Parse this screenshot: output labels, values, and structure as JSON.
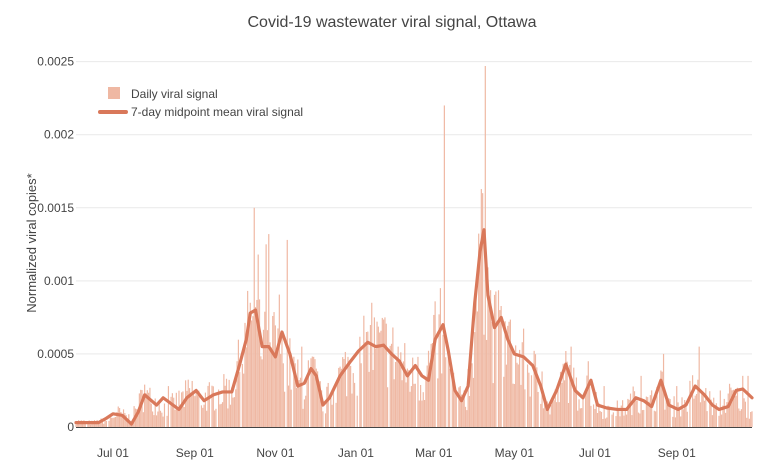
{
  "chart_data": {
    "type": "bar",
    "title": "Covid-19 wastewater viral signal, Ottawa",
    "xlabel": "",
    "ylabel": "Normalized viral copies*",
    "ylim": [
      0,
      0.0026
    ],
    "y_ticks": [
      {
        "value": 0,
        "label": "0"
      },
      {
        "value": 0.0005,
        "label": "0.0005"
      },
      {
        "value": 0.001,
        "label": "0.001"
      },
      {
        "value": 0.0015,
        "label": "0.0015"
      },
      {
        "value": 0.002,
        "label": "0.002"
      },
      {
        "value": 0.0025,
        "label": "0.0025"
      }
    ],
    "x_range": [
      "2020-06-03",
      "2021-10-28"
    ],
    "x_ticks": [
      {
        "date": "2020-07-01",
        "label": "Jul 01"
      },
      {
        "date": "2020-09-01",
        "label": "Sep 01"
      },
      {
        "date": "2020-11-01",
        "label": "Nov 01"
      },
      {
        "date": "2021-01-01",
        "label": "Jan 01"
      },
      {
        "date": "2021-03-01",
        "label": "Mar 01"
      },
      {
        "date": "2021-05-01",
        "label": "May 01"
      },
      {
        "date": "2021-07-01",
        "label": "Jul 01"
      },
      {
        "date": "2021-09-01",
        "label": "Sep 01"
      }
    ],
    "grid": true,
    "legend_position": "top-left",
    "colors": {
      "bar": "#efb8a3",
      "line": "#d9785a",
      "grid": "#e9e9e9",
      "text": "#444444"
    },
    "series": [
      {
        "name": "Daily viral signal",
        "type": "bar",
        "key_points": [
          [
            "2020-06-03",
            4e-05
          ],
          [
            "2020-06-15",
            3e-05
          ],
          [
            "2020-06-28",
            5e-05
          ],
          [
            "2020-07-05",
            0.0001
          ],
          [
            "2020-07-15",
            6e-05
          ],
          [
            "2020-07-24",
            0.00022
          ],
          [
            "2020-08-01",
            0.00018
          ],
          [
            "2020-08-10",
            0.00013
          ],
          [
            "2020-08-20",
            0.00018
          ],
          [
            "2020-08-30",
            0.00025
          ],
          [
            "2020-09-05",
            0.00019
          ],
          [
            "2020-09-15",
            0.00023
          ],
          [
            "2020-09-28",
            0.00025
          ],
          [
            "2020-10-06",
            0.00045
          ],
          [
            "2020-10-14",
            0.00075
          ],
          [
            "2020-10-20",
            0.0006
          ],
          [
            "2020-10-27",
            0.0005
          ],
          [
            "2020-11-04",
            0.00065
          ],
          [
            "2020-11-12",
            0.00042
          ],
          [
            "2020-11-22",
            0.00025
          ],
          [
            "2020-11-28",
            0.0004
          ],
          [
            "2020-12-08",
            0.00016
          ],
          [
            "2020-12-22",
            0.00038
          ],
          [
            "2021-01-05",
            0.0005
          ],
          [
            "2021-01-15",
            0.00055
          ],
          [
            "2021-01-25",
            0.00055
          ],
          [
            "2021-02-03",
            0.00044
          ],
          [
            "2021-02-12",
            0.00035
          ],
          [
            "2021-02-22",
            0.00032
          ],
          [
            "2021-03-03",
            0.00062
          ],
          [
            "2021-03-10",
            0.00045
          ],
          [
            "2021-03-18",
            0.00022
          ],
          [
            "2021-03-25",
            0.00015
          ],
          [
            "2021-04-02",
            0.0008
          ],
          [
            "2021-04-08",
            0.00125
          ],
          [
            "2021-04-14",
            0.00065
          ],
          [
            "2021-04-22",
            0.00062
          ],
          [
            "2021-04-30",
            0.00048
          ],
          [
            "2021-05-08",
            0.00045
          ],
          [
            "2021-05-18",
            0.00035
          ],
          [
            "2021-05-27",
            0.00012
          ],
          [
            "2021-06-03",
            0.00022
          ],
          [
            "2021-06-10",
            0.00038
          ],
          [
            "2021-06-18",
            0.00022
          ],
          [
            "2021-06-26",
            0.00028
          ],
          [
            "2021-07-05",
            0.00012
          ],
          [
            "2021-07-15",
            0.00012
          ],
          [
            "2021-07-24",
            0.00013
          ],
          [
            "2021-08-02",
            0.00022
          ],
          [
            "2021-08-11",
            0.00015
          ],
          [
            "2021-08-20",
            0.00028
          ],
          [
            "2021-08-28",
            0.00014
          ],
          [
            "2021-09-06",
            0.00015
          ],
          [
            "2021-09-14",
            0.00027
          ],
          [
            "2021-09-23",
            0.0002
          ],
          [
            "2021-10-02",
            0.00012
          ],
          [
            "2021-10-12",
            0.00022
          ],
          [
            "2021-10-20",
            0.00018
          ],
          [
            "2021-10-28",
            0.0001
          ]
        ],
        "spikes": [
          [
            "2020-07-25",
            0.00029
          ],
          [
            "2020-08-12",
            0.00028
          ],
          [
            "2020-09-25",
            0.00033
          ],
          [
            "2020-10-03",
            0.00045
          ],
          [
            "2020-10-13",
            0.00085
          ],
          [
            "2020-10-16",
            0.0015
          ],
          [
            "2020-10-19",
            0.00118
          ],
          [
            "2020-10-25",
            0.00125
          ],
          [
            "2020-10-27",
            0.00132
          ],
          [
            "2020-11-06",
            0.00065
          ],
          [
            "2020-11-10",
            0.00128
          ],
          [
            "2020-11-21",
            0.00055
          ],
          [
            "2020-11-30",
            0.00048
          ],
          [
            "2020-12-26",
            0.00048
          ],
          [
            "2021-01-09",
            0.00065
          ],
          [
            "2021-01-13",
            0.00085
          ],
          [
            "2021-01-23",
            0.00075
          ],
          [
            "2021-02-02",
            0.00055
          ],
          [
            "2021-02-17",
            0.00048
          ],
          [
            "2021-03-06",
            0.00095
          ],
          [
            "2021-03-09",
            0.0022
          ],
          [
            "2021-03-24",
            0.00025
          ],
          [
            "2021-04-02",
            0.0009
          ],
          [
            "2021-04-05",
            0.00125
          ],
          [
            "2021-04-07",
            0.0016
          ],
          [
            "2021-04-09",
            0.00247
          ],
          [
            "2021-04-12",
            0.0009
          ],
          [
            "2021-04-20",
            0.0008
          ],
          [
            "2021-04-27",
            0.00072
          ],
          [
            "2021-05-07",
            0.00058
          ],
          [
            "2021-05-22",
            0.00038
          ],
          [
            "2021-06-09",
            0.00052
          ],
          [
            "2021-06-13",
            0.00055
          ],
          [
            "2021-06-26",
            0.00045
          ],
          [
            "2021-07-08",
            0.00028
          ],
          [
            "2021-08-05",
            0.00035
          ],
          [
            "2021-08-22",
            0.0005
          ],
          [
            "2021-09-01",
            0.00028
          ],
          [
            "2021-09-18",
            0.00055
          ],
          [
            "2021-10-04",
            0.00025
          ],
          [
            "2021-10-21",
            0.00035
          ],
          [
            "2021-10-25",
            0.00035
          ]
        ]
      },
      {
        "name": "7-day midpoint mean viral signal",
        "type": "line",
        "points": [
          [
            "2020-06-03",
            3e-05
          ],
          [
            "2020-06-20",
            3e-05
          ],
          [
            "2020-06-26",
            6e-05
          ],
          [
            "2020-07-01",
            9e-05
          ],
          [
            "2020-07-08",
            8e-05
          ],
          [
            "2020-07-15",
            2e-05
          ],
          [
            "2020-07-20",
            0.0001
          ],
          [
            "2020-07-25",
            0.00022
          ],
          [
            "2020-08-03",
            0.00015
          ],
          [
            "2020-08-08",
            0.0002
          ],
          [
            "2020-08-14",
            0.00016
          ],
          [
            "2020-08-20",
            0.00012
          ],
          [
            "2020-08-26",
            0.0002
          ],
          [
            "2020-09-02",
            0.00025
          ],
          [
            "2020-09-08",
            0.00018
          ],
          [
            "2020-09-15",
            0.00022
          ],
          [
            "2020-09-22",
            0.00024
          ],
          [
            "2020-09-29",
            0.00024
          ],
          [
            "2020-10-05",
            0.00043
          ],
          [
            "2020-10-10",
            0.0006
          ],
          [
            "2020-10-13",
            0.00078
          ],
          [
            "2020-10-17",
            0.0008
          ],
          [
            "2020-10-22",
            0.00055
          ],
          [
            "2020-10-27",
            0.00055
          ],
          [
            "2020-11-01",
            0.00048
          ],
          [
            "2020-11-06",
            0.00065
          ],
          [
            "2020-11-12",
            0.0005
          ],
          [
            "2020-11-18",
            0.00028
          ],
          [
            "2020-11-23",
            0.0003
          ],
          [
            "2020-11-28",
            0.0004
          ],
          [
            "2020-12-02",
            0.00035
          ],
          [
            "2020-12-07",
            0.00015
          ],
          [
            "2020-12-12",
            0.0002
          ],
          [
            "2020-12-20",
            0.00035
          ],
          [
            "2020-12-28",
            0.00045
          ],
          [
            "2021-01-03",
            0.00052
          ],
          [
            "2021-01-10",
            0.00058
          ],
          [
            "2021-01-16",
            0.00055
          ],
          [
            "2021-01-22",
            0.00056
          ],
          [
            "2021-01-28",
            0.0005
          ],
          [
            "2021-02-03",
            0.00045
          ],
          [
            "2021-02-09",
            0.00035
          ],
          [
            "2021-02-15",
            0.00042
          ],
          [
            "2021-02-20",
            0.00035
          ],
          [
            "2021-02-25",
            0.00032
          ],
          [
            "2021-03-02",
            0.0006
          ],
          [
            "2021-03-08",
            0.0007
          ],
          [
            "2021-03-12",
            0.00052
          ],
          [
            "2021-03-17",
            0.00025
          ],
          [
            "2021-03-22",
            0.00018
          ],
          [
            "2021-03-27",
            0.00028
          ],
          [
            "2021-04-01",
            0.00085
          ],
          [
            "2021-04-05",
            0.0012
          ],
          [
            "2021-04-08",
            0.00135
          ],
          [
            "2021-04-11",
            0.0009
          ],
          [
            "2021-04-16",
            0.00068
          ],
          [
            "2021-04-21",
            0.00075
          ],
          [
            "2021-04-26",
            0.0006
          ],
          [
            "2021-05-01",
            0.0005
          ],
          [
            "2021-05-08",
            0.00048
          ],
          [
            "2021-05-15",
            0.00042
          ],
          [
            "2021-05-21",
            0.00028
          ],
          [
            "2021-05-26",
            0.00012
          ],
          [
            "2021-06-02",
            0.00025
          ],
          [
            "2021-06-09",
            0.00043
          ],
          [
            "2021-06-16",
            0.00025
          ],
          [
            "2021-06-22",
            0.0002
          ],
          [
            "2021-06-28",
            0.00032
          ],
          [
            "2021-07-03",
            0.00015
          ],
          [
            "2021-07-10",
            0.00013
          ],
          [
            "2021-07-18",
            0.00012
          ],
          [
            "2021-07-25",
            0.00012
          ],
          [
            "2021-08-01",
            0.0002
          ],
          [
            "2021-08-07",
            0.00018
          ],
          [
            "2021-08-13",
            0.00014
          ],
          [
            "2021-08-20",
            0.00032
          ],
          [
            "2021-08-26",
            0.00015
          ],
          [
            "2021-09-02",
            0.00012
          ],
          [
            "2021-09-08",
            0.00015
          ],
          [
            "2021-09-15",
            0.00028
          ],
          [
            "2021-09-22",
            0.00022
          ],
          [
            "2021-09-28",
            0.00015
          ],
          [
            "2021-10-03",
            0.00012
          ],
          [
            "2021-10-10",
            0.00014
          ],
          [
            "2021-10-16",
            0.00025
          ],
          [
            "2021-10-21",
            0.00026
          ],
          [
            "2021-10-28",
            0.0002
          ]
        ]
      }
    ]
  }
}
